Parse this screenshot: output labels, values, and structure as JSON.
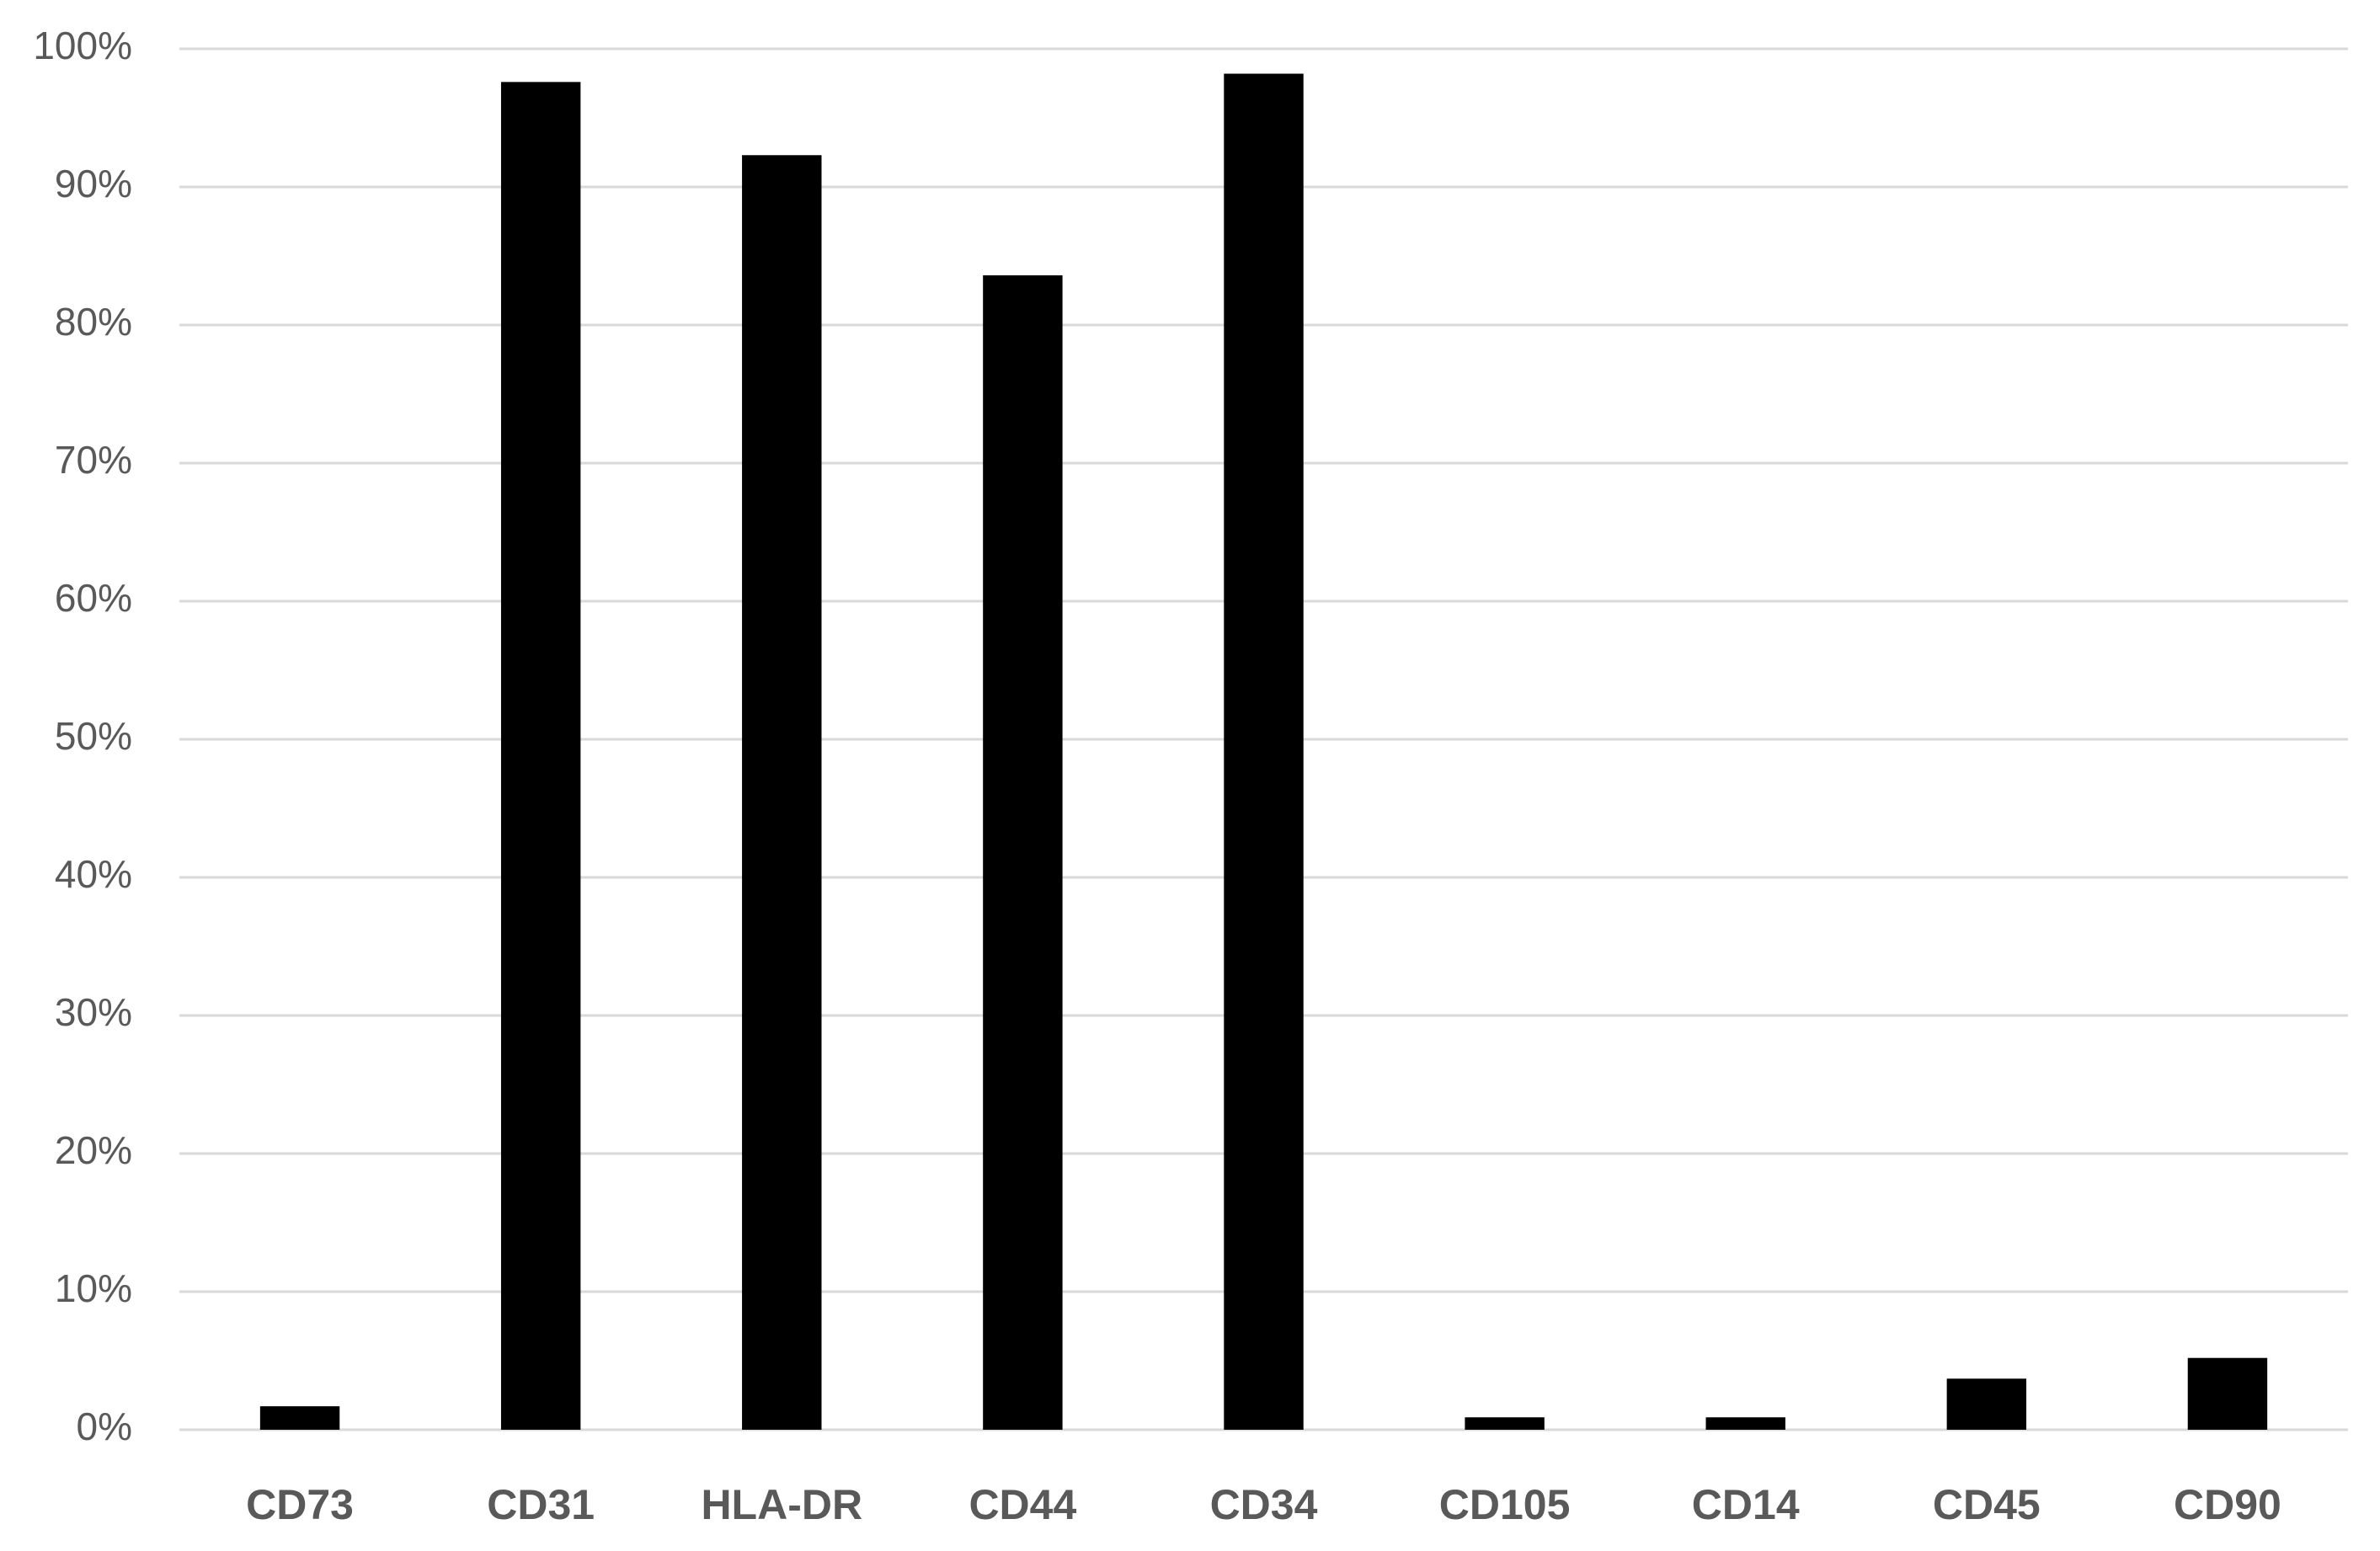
{
  "chart_data": {
    "type": "bar",
    "categories": [
      "CD73",
      "CD31",
      "HLA-DR",
      "CD44",
      "CD34",
      "CD105",
      "CD14",
      "CD45",
      "CD90"
    ],
    "values": [
      1.7,
      97.6,
      92.3,
      83.6,
      98.2,
      0.9,
      0.9,
      3.7,
      5.2
    ],
    "color": "#000000",
    "ylim": [
      0,
      100
    ],
    "yticks": [
      {
        "value": 0,
        "label": "0%"
      },
      {
        "value": 10,
        "label": "10%"
      },
      {
        "value": 20,
        "label": "20%"
      },
      {
        "value": 30,
        "label": "30%"
      },
      {
        "value": 40,
        "label": "40%"
      },
      {
        "value": 50,
        "label": "50%"
      },
      {
        "value": 60,
        "label": "60%"
      },
      {
        "value": 70,
        "label": "70%"
      },
      {
        "value": 80,
        "label": "80%"
      },
      {
        "value": 90,
        "label": "90%"
      },
      {
        "value": 100,
        "label": "100%"
      }
    ],
    "grid": true
  }
}
